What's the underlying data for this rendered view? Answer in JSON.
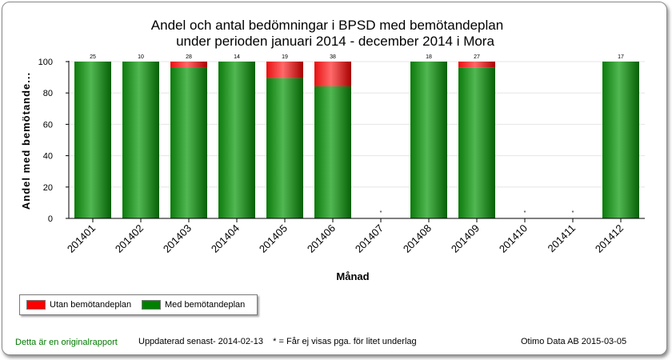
{
  "chart_data": {
    "type": "bar",
    "stacked": true,
    "title_lines": [
      "Andel och antal bedömningar i BPSD med bemötandeplan",
      "under perioden januari 2014 - december 2014 i  Mora"
    ],
    "xlabel": "Månad",
    "ylabel": "Andel  med bemötande...",
    "ylim": [
      0,
      100
    ],
    "yticks": [
      "0",
      "20",
      "40",
      "60",
      "80",
      "100"
    ],
    "categories": [
      "201401",
      "201402",
      "201403",
      "201404",
      "201405",
      "201406",
      "201407",
      "201408",
      "201409",
      "201410",
      "201411",
      "201412"
    ],
    "series": [
      {
        "name": "Med bemötandeplan",
        "color": "#008000",
        "values": [
          100,
          100,
          96.4,
          100,
          89.5,
          84.2,
          null,
          100,
          96.3,
          null,
          null,
          100
        ]
      },
      {
        "name": "Utan bemötandeplan",
        "color": "#ff0000",
        "values": [
          0,
          0,
          3.6,
          0,
          10.5,
          15.8,
          null,
          0,
          3.7,
          null,
          null,
          0
        ]
      }
    ],
    "data_labels": [
      "25",
      "10",
      "28",
      "14",
      "19",
      "38",
      "*",
      "18",
      "27",
      "*",
      "*",
      "17"
    ],
    "grid": true,
    "legend_position": "bottom-left"
  },
  "legend": {
    "utan_label": "Utan bemötandeplan",
    "med_label": "Med bemötandeplan"
  },
  "footer": {
    "original_report": "Detta är en originalrapport",
    "updated": "Uppdaterad senast- 2014-02-13    * = Får ej visas pga. för litet underlag",
    "company": "Otimo Data AB 2015-03-05"
  }
}
